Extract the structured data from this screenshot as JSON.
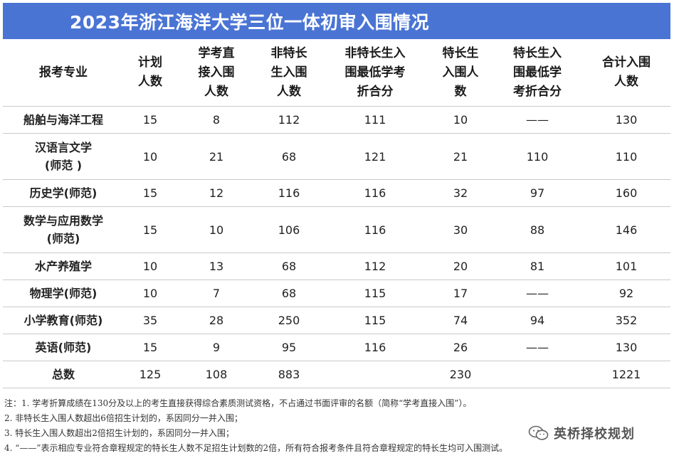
{
  "title": "2023年浙江海洋大学三位一体初审入围情况",
  "table": {
    "headers": [
      [
        "报考专业"
      ],
      [
        "计划",
        "人数"
      ],
      [
        "学考直",
        "接入围",
        "人数"
      ],
      [
        "非特长",
        "生入围",
        "人数"
      ],
      [
        "非特长生入",
        "围最低学考",
        "折合分"
      ],
      [
        "特长生",
        "入围人",
        "数"
      ],
      [
        "特长生入",
        "围最低学",
        "考折合分"
      ],
      [
        "合计入围",
        "人数"
      ]
    ],
    "rows": [
      {
        "name": [
          "船舶与海洋工程"
        ],
        "plan": "15",
        "direct": "8",
        "non_special": "112",
        "non_special_min": "111",
        "special": "10",
        "special_min": "——",
        "total": "130"
      },
      {
        "name": [
          "汉语言文学",
          "(师范 )"
        ],
        "plan": "10",
        "direct": "21",
        "non_special": "68",
        "non_special_min": "121",
        "special": "21",
        "special_min": "110",
        "total": "110"
      },
      {
        "name": [
          "历史学(师范)"
        ],
        "plan": "15",
        "direct": "12",
        "non_special": "116",
        "non_special_min": "116",
        "special": "32",
        "special_min": "97",
        "total": "160"
      },
      {
        "name": [
          "数学与应用数学",
          "(师范)"
        ],
        "plan": "15",
        "direct": "10",
        "non_special": "106",
        "non_special_min": "116",
        "special": "30",
        "special_min": "88",
        "total": "146"
      },
      {
        "name": [
          "水产养殖学"
        ],
        "plan": "10",
        "direct": "13",
        "non_special": "68",
        "non_special_min": "112",
        "special": "20",
        "special_min": "81",
        "total": "101"
      },
      {
        "name": [
          "物理学(师范)"
        ],
        "plan": "10",
        "direct": "7",
        "non_special": "68",
        "non_special_min": "115",
        "special": "17",
        "special_min": "——",
        "total": "92"
      },
      {
        "name": [
          "小学教育(师范)"
        ],
        "plan": "35",
        "direct": "28",
        "non_special": "250",
        "non_special_min": "115",
        "special": "74",
        "special_min": "94",
        "total": "352"
      },
      {
        "name": [
          "英语(师范)"
        ],
        "plan": "15",
        "direct": "9",
        "non_special": "95",
        "non_special_min": "116",
        "special": "26",
        "special_min": "——",
        "total": "130"
      }
    ],
    "totals": {
      "name": "总数",
      "plan": "125",
      "direct": "108",
      "non_special": "883",
      "non_special_min": "",
      "special": "230",
      "special_min": "",
      "total": "1221"
    }
  },
  "notes": [
    "注：1. 学考折算成绩在130分及以上的考生直接获得综合素质测试资格，不占通过书面评审的名额（简称“学考直接入围”）。",
    "2. 非特长生入围人数超出6倍招生计划的，系因同分一并入围；",
    "3. 特长生入围人数超出2倍招生计划的，系因同分一并入围；",
    "4. “——”表示相应专业符合章程规定的特长生人数不足招生计划数的2倍，所有符合报考条件且符合章程规定的特长生均可入围测试。"
  ],
  "watermark": {
    "text": "英桥择校规划",
    "icon": "wechat-icon"
  }
}
